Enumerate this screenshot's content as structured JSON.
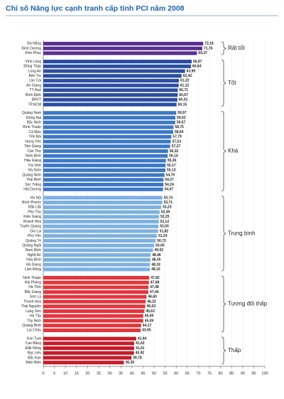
{
  "chart_data": {
    "type": "hbar",
    "title": "Chỉ số Năng lực cạnh tranh cấp tỉnh PCI năm 2008",
    "xlim": [
      0,
      100
    ],
    "xticks": [
      0,
      5,
      10,
      15,
      20,
      25,
      30,
      35,
      40,
      45,
      50,
      55,
      60,
      65,
      70,
      75,
      80,
      85,
      90,
      95,
      100
    ],
    "grid": true,
    "series": [
      {
        "name": "Rất tốt",
        "color": "#5a2e8e",
        "categories": [
          "Đà Nẵng",
          "Bình Dương",
          "Vĩnh Phúc"
        ],
        "values": [
          72.18,
          71.76,
          69.37
        ],
        "value_labels": [
          "72,18",
          "71,76",
          "69,37"
        ]
      },
      {
        "name": "Tốt",
        "color": "#2c4ea2",
        "categories": [
          "Vĩnh Long",
          "Đồng Tháp",
          "Long An",
          "Bến Tre",
          "Lào Cai",
          "An Giang",
          "TT-Huế",
          "Bình Định",
          "BRVT",
          "TP.HCM"
        ],
        "values": [
          66.97,
          66.64,
          63.99,
          62.42,
          61.22,
          61.12,
          60.71,
          60.67,
          60.51,
          60.15
        ],
        "value_labels": [
          "66,97",
          "66,64",
          "63,99",
          "62,42",
          "61,22",
          "61,12",
          "60,71",
          "60,67",
          "60,51",
          "60,15"
        ]
      },
      {
        "name": "Khá",
        "color": "#3d78c6",
        "categories": [
          "Quảng Nam",
          "Đồng Nai",
          "Bắc Ninh",
          "Bình Thuận",
          "Cà Mau",
          "Yên Bái",
          "Hưng Yên",
          "Tiền Giang",
          "Cần Thơ",
          "Ninh Bình",
          "Hậu Giang",
          "Trà Vinh",
          "Hà Nam",
          "Quảng Ninh",
          "Thái Bình",
          "Sóc Trăng",
          "Hải Dương"
        ],
        "values": [
          59.97,
          59.62,
          59.57,
          58.75,
          58.64,
          57.79,
          57.53,
          57.27,
          56.32,
          56.14,
          55.36,
          55.17,
          55.13,
          54.7,
          54.27,
          54.24,
          54.07
        ],
        "value_labels": [
          "59,97",
          "59,62",
          "59,57",
          "58,75",
          "58,64",
          "57,79",
          "57,53",
          "57,27",
          "56,32",
          "56,14",
          "55,36",
          "55,17",
          "55,13",
          "54,70",
          "54,27",
          "54,24",
          "54,07"
        ]
      },
      {
        "name": "Trung bình",
        "color": "#7db0e2",
        "categories": [
          "Hà Nội",
          "Bình Phước",
          "Đắk Lắk",
          "Phú Thọ",
          "Kiên Giang",
          "Khánh Hòa",
          "Tuyên Quang",
          "Gia Lai",
          "Phú Yên",
          "Quảng Trị",
          "Quảng Ngãi",
          "Nam Định",
          "Nghệ An",
          "Hòa Bình",
          "Hà Giang",
          "Lâm Đồng"
        ],
        "values": [
          53.74,
          53.71,
          53.23,
          52.49,
          52.25,
          52.12,
          52.0,
          51.82,
          51.24,
          50.72,
          50.05,
          49.52,
          48.46,
          48.35,
          48.18,
          48.1
        ],
        "value_labels": [
          "53,74",
          "53,71",
          "53,23",
          "52,49",
          "52,25",
          "52,12",
          "52,00",
          "51,82",
          "51,24",
          "50,72",
          "50,05",
          "49,52",
          "48,46",
          "48,35",
          "48,18",
          "48,10"
        ]
      },
      {
        "name": "Tương đối thấp",
        "color": "#e2363c",
        "categories": [
          "Ninh Thuận",
          "Hải Phòng",
          "Hà Tĩnh",
          "Bắc Giang",
          "Sơn La",
          "Thanh Hóa",
          "Thái Nguyên",
          "Lạng Sơn",
          "Hà Tây",
          "Tây Ninh",
          "Quảng Bình",
          "Lai Châu"
        ],
        "values": [
          47.82,
          47.68,
          47.48,
          47.44,
          46.6,
          46.22,
          46.03,
          45.63,
          45.09,
          45.09,
          44.17,
          43.95
        ],
        "value_labels": [
          "47,82",
          "47,68",
          "47,48",
          "47,44",
          "46,60",
          "46,22",
          "46,03",
          "45,63",
          "45,09",
          "45,09",
          "44,17",
          "43,95"
        ]
      },
      {
        "name": "Thấp",
        "color": "#c41e2a",
        "categories": [
          "Kon Tum",
          "Cao Bằng",
          "Đắk Nông",
          "Bạc Liêu",
          "Bắc Kạn",
          "Điện Biên"
        ],
        "values": [
          41.94,
          41.02,
          41.01,
          40.92,
          39.78,
          36.39
        ],
        "value_labels": [
          "41,94",
          "41,02",
          "41,01",
          "40,92",
          "39,78",
          "36,39"
        ]
      }
    ]
  }
}
